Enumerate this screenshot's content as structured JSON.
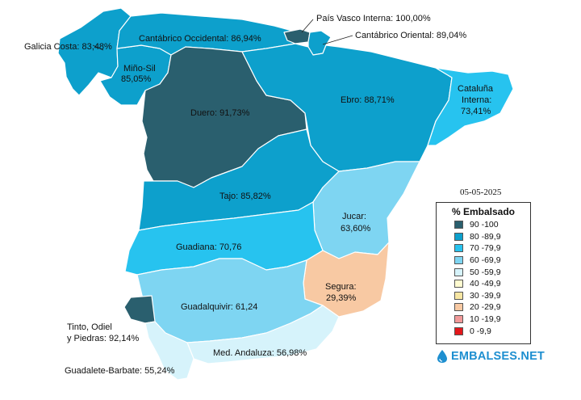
{
  "date": "05-05-2025",
  "brand": "EMBALSES.NET",
  "legend": {
    "title": "% Embalsado",
    "items": [
      {
        "label": "90 -100",
        "color": "#2a5f6e"
      },
      {
        "label": "80 -89,9",
        "color": "#0da0cc"
      },
      {
        "label": "70 -79,9",
        "color": "#27c3ef"
      },
      {
        "label": "60 -69,9",
        "color": "#7ed5f2"
      },
      {
        "label": "50 -59,9",
        "color": "#d6f3fb"
      },
      {
        "label": "40 -49,9",
        "color": "#fffbd0"
      },
      {
        "label": "30 -39,9",
        "color": "#f7e6a3"
      },
      {
        "label": "20 -29,9",
        "color": "#f8c9a3"
      },
      {
        "label": "10 -19,9",
        "color": "#f29a9a"
      },
      {
        "label": "0 -9,9",
        "color": "#e3171b"
      }
    ]
  },
  "basins": {
    "galicia_costa": {
      "name": "Galicia Costa",
      "value": "83,48%",
      "label": "Galicia Costa: 83,48%"
    },
    "mino_sil": {
      "name": "Miño-Sil",
      "value": "85,05%",
      "label1": "Miño-Sil",
      "label2": "85,05%"
    },
    "cantabrico_occidental": {
      "name": "Cantábrico Occidental",
      "value": "86,94%",
      "label": "Cantábrico Occidental: 86,94%"
    },
    "pais_vasco_interna": {
      "name": "País Vasco Interna",
      "value": "100,00%",
      "label": "País Vasco Interna: 100,00%"
    },
    "cantabrico_oriental": {
      "name": "Cantábrico Oriental",
      "value": "89,04%",
      "label": "Cantábrico Oriental: 89,04%"
    },
    "duero": {
      "name": "Duero",
      "value": "91,73%",
      "label": "Duero: 91,73%"
    },
    "ebro": {
      "name": "Ebro",
      "value": "88,71%",
      "label": "Ebro: 88,71%"
    },
    "cataluna_interna": {
      "name": "Cataluña Interna",
      "value": "73,41%",
      "label1": "Cataluña",
      "label2": "Interna:",
      "label3": "73,41%"
    },
    "tajo": {
      "name": "Tajo",
      "value": "85,82%",
      "label": "Tajo: 85,82%"
    },
    "jucar": {
      "name": "Jucar",
      "value": "63,60%",
      "label1": "Jucar:",
      "label2": "63,60%"
    },
    "guadiana": {
      "name": "Guadiana",
      "value": "70,76",
      "label": "Guadiana: 70,76"
    },
    "segura": {
      "name": "Segura",
      "value": "29,39%",
      "label1": "Segura:",
      "label2": "29,39%"
    },
    "guadalquivir": {
      "name": "Guadalquivir",
      "value": "61,24",
      "label": "Guadalquivir: 61,24"
    },
    "tinto_odiel": {
      "name": "Tinto, Odiel y Piedras",
      "value": "92,14%",
      "label1": "Tinto, Odiel",
      "label2": "y Piedras: 92,14%"
    },
    "med_andaluza": {
      "name": "Med. Andaluza",
      "value": "56,98%",
      "label": "Med. Andaluza: 56,98%"
    },
    "guadalete_barbate": {
      "name": "Guadalete-Barbate",
      "value": "55,24%",
      "label": "Guadalete-Barbate: 55,24%"
    }
  }
}
